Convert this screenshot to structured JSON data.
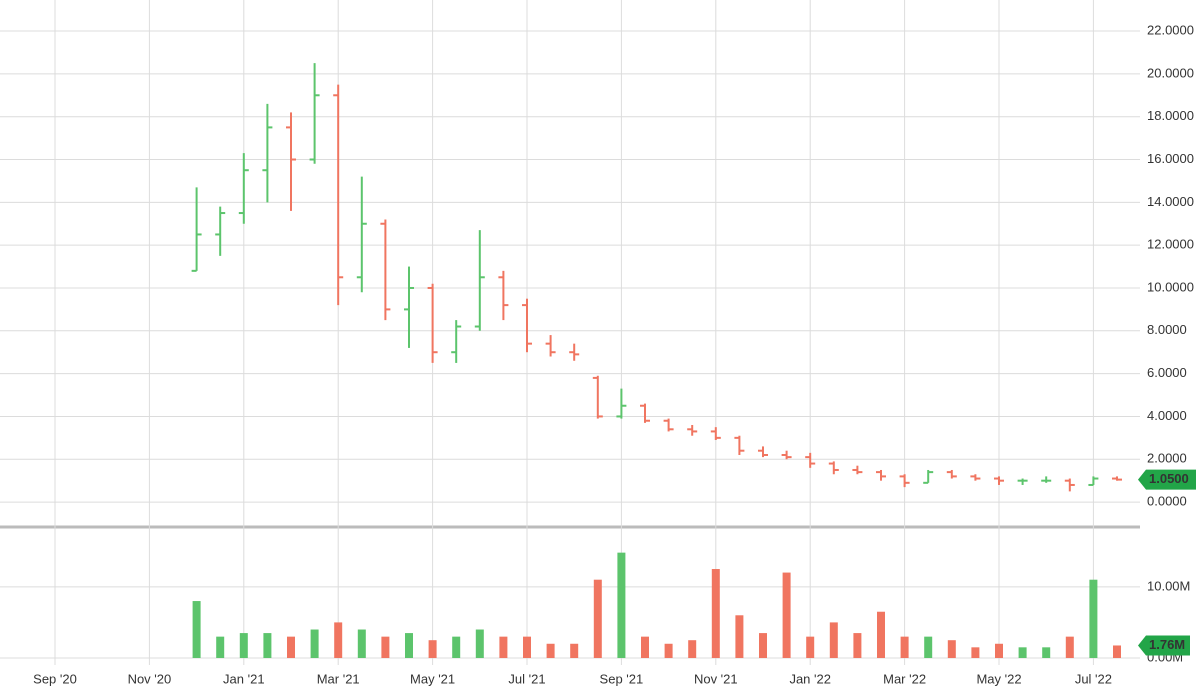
{
  "chart_data": {
    "type": "ohlc",
    "categories": [
      "Sep '20",
      null,
      null,
      null,
      "Nov '20",
      null,
      null,
      null,
      "Jan '21",
      null,
      null,
      null,
      "Mar '21",
      null,
      null,
      null,
      "May '21",
      null,
      null,
      null,
      "Jul '21",
      null,
      null,
      null,
      "Sep '21",
      null,
      null,
      null,
      "Nov '21",
      null,
      null,
      null,
      "Jan '22",
      null,
      null,
      null,
      "Mar '22",
      null,
      null,
      null,
      "May '22",
      null,
      null,
      null,
      "Jul '22",
      null
    ],
    "open": [
      null,
      null,
      null,
      null,
      null,
      null,
      10.8,
      12.5,
      13.5,
      15.5,
      17.5,
      16.0,
      19.0,
      10.5,
      13.0,
      9.0,
      10.0,
      7.0,
      8.2,
      10.5,
      9.2,
      7.4,
      7.0,
      5.8,
      4.0,
      4.5,
      3.8,
      3.4,
      3.3,
      3.0,
      2.4,
      2.2,
      2.1,
      1.8,
      1.5,
      1.4,
      1.2,
      0.9,
      1.4,
      1.2,
      1.1,
      1.0,
      1.0,
      1.0,
      0.8,
      1.1
    ],
    "high": [
      null,
      null,
      null,
      null,
      null,
      null,
      14.7,
      13.8,
      16.3,
      18.6,
      18.2,
      20.5,
      19.5,
      15.2,
      13.2,
      11.0,
      10.2,
      8.5,
      12.7,
      10.8,
      9.5,
      7.8,
      7.4,
      5.9,
      5.3,
      4.6,
      3.9,
      3.6,
      3.5,
      3.1,
      2.6,
      2.4,
      2.3,
      1.9,
      1.7,
      1.5,
      1.3,
      1.5,
      1.5,
      1.3,
      1.2,
      1.1,
      1.2,
      1.1,
      1.2,
      1.2
    ],
    "low": [
      null,
      null,
      null,
      null,
      null,
      null,
      10.8,
      11.5,
      13.0,
      14.0,
      13.6,
      15.8,
      9.2,
      9.8,
      8.5,
      7.2,
      6.5,
      6.5,
      8.0,
      8.5,
      7.0,
      6.8,
      6.6,
      3.9,
      3.9,
      3.7,
      3.3,
      3.1,
      2.9,
      2.2,
      2.1,
      2.0,
      1.6,
      1.3,
      1.3,
      1.0,
      0.7,
      0.9,
      1.1,
      1.0,
      0.8,
      0.8,
      0.9,
      0.5,
      0.8,
      1.0
    ],
    "close": [
      null,
      null,
      null,
      null,
      null,
      null,
      12.5,
      13.5,
      15.5,
      17.5,
      16.0,
      19.0,
      10.5,
      13.0,
      9.0,
      10.0,
      7.0,
      8.2,
      10.5,
      9.2,
      7.4,
      7.0,
      6.9,
      4.0,
      4.5,
      3.8,
      3.4,
      3.3,
      3.0,
      2.4,
      2.2,
      2.1,
      1.8,
      1.5,
      1.4,
      1.2,
      0.9,
      1.4,
      1.2,
      1.1,
      1.0,
      1.0,
      1.0,
      0.8,
      1.1,
      1.05
    ],
    "volume": [
      null,
      null,
      null,
      null,
      null,
      null,
      8.0,
      3.0,
      3.5,
      3.5,
      3.0,
      4.0,
      5.0,
      4.0,
      3.0,
      3.5,
      2.5,
      3.0,
      4.0,
      3.0,
      3.0,
      2.0,
      2.0,
      11.0,
      14.8,
      3.0,
      2.0,
      2.5,
      12.5,
      6.0,
      3.5,
      12.0,
      3.0,
      5.0,
      3.5,
      6.5,
      3.0,
      3.0,
      2.5,
      1.5,
      2.0,
      1.5,
      1.5,
      3.0,
      11.0,
      1.76
    ],
    "up_color": "#5cc46c",
    "down_color": "#f07560",
    "ylim": [
      -1.07,
      23.45
    ],
    "yticks": [
      {
        "value": 0,
        "label": "0.0000"
      },
      {
        "value": 2,
        "label": "2.0000"
      },
      {
        "value": 4,
        "label": "4.0000"
      },
      {
        "value": 6,
        "label": "6.0000"
      },
      {
        "value": 8,
        "label": "8.0000"
      },
      {
        "value": 10,
        "label": "10.0000"
      },
      {
        "value": 12,
        "label": "12.0000"
      },
      {
        "value": 14,
        "label": "14.0000"
      },
      {
        "value": 16,
        "label": "16.0000"
      },
      {
        "value": 18,
        "label": "18.0000"
      },
      {
        "value": 20,
        "label": "20.0000"
      },
      {
        "value": 22,
        "label": "22.0000"
      }
    ],
    "y2lim": [
      0,
      17.7
    ],
    "y2ticks": [
      {
        "value": 0,
        "label": "0.00M"
      },
      {
        "value": 10,
        "label": "10.00M"
      }
    ],
    "last_price": {
      "value": 1.05,
      "label": "1.0500"
    },
    "last_volume": {
      "value": 1.76,
      "label": "1.76M"
    },
    "grid": true
  }
}
